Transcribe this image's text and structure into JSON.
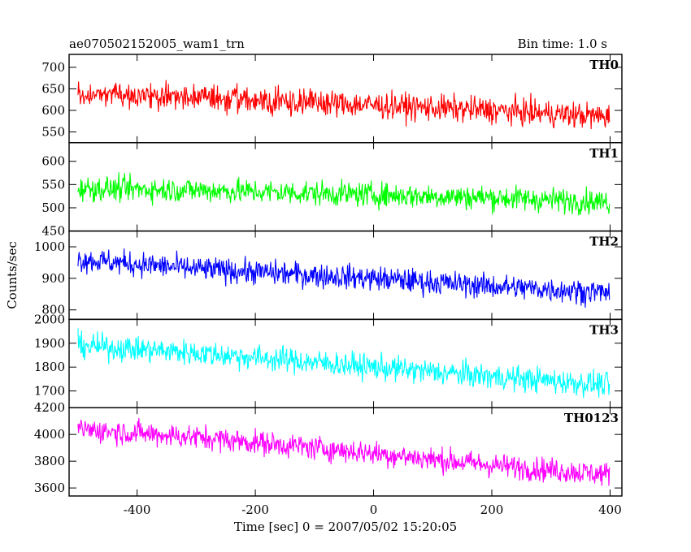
{
  "header": {
    "title": "ae070502152005_wam1_trn",
    "bin_time": "Bin time: 1.0 s"
  },
  "chart_data": {
    "type": "line",
    "xlabel": "Time [sec] 0 = 2007/05/02 15:20:05",
    "ylabel": "Counts/sec",
    "xlim": [
      -515,
      420
    ],
    "x_range": [
      -500,
      399
    ],
    "bin_seconds": 1.0,
    "x_ticks": [
      -400,
      -200,
      0,
      200,
      400
    ],
    "grid": false,
    "panels": [
      {
        "name": "TH0",
        "color": "#ff0000",
        "ylim": [
          525,
          730
        ],
        "y_ticks": [
          550,
          600,
          650,
          700
        ],
        "trend": [
          [
            -500,
            638
          ],
          [
            -300,
            630
          ],
          [
            0,
            612
          ],
          [
            200,
            600
          ],
          [
            399,
            585
          ]
        ],
        "scatter": 22
      },
      {
        "name": "TH1",
        "color": "#00ff00",
        "ylim": [
          450,
          640
        ],
        "y_ticks": [
          450,
          500,
          550,
          600
        ],
        "trend": [
          [
            -500,
            542
          ],
          [
            -300,
            538
          ],
          [
            0,
            528
          ],
          [
            200,
            522
          ],
          [
            399,
            512
          ]
        ],
        "scatter": 19
      },
      {
        "name": "TH2",
        "color": "#0000ff",
        "ylim": [
          770,
          1050
        ],
        "y_ticks": [
          800,
          900,
          1000
        ],
        "trend": [
          [
            -500,
            960
          ],
          [
            -300,
            930
          ],
          [
            0,
            900
          ],
          [
            200,
            875
          ],
          [
            399,
            855
          ]
        ],
        "scatter": 28
      },
      {
        "name": "TH3",
        "color": "#00ffff",
        "ylim": [
          1630,
          2000
        ],
        "y_ticks": [
          1700,
          1800,
          1900,
          2000
        ],
        "trend": [
          [
            -500,
            1890
          ],
          [
            -300,
            1860
          ],
          [
            0,
            1800
          ],
          [
            200,
            1760
          ],
          [
            399,
            1725
          ]
        ],
        "scatter": 38
      },
      {
        "name": "TH0123",
        "color": "#ff00ff",
        "ylim": [
          3540,
          4200
        ],
        "y_ticks": [
          3600,
          3800,
          4000,
          4200
        ],
        "trend": [
          [
            -500,
            4040
          ],
          [
            -300,
            3980
          ],
          [
            0,
            3860
          ],
          [
            200,
            3770
          ],
          [
            399,
            3700
          ]
        ],
        "scatter": 65
      }
    ]
  }
}
